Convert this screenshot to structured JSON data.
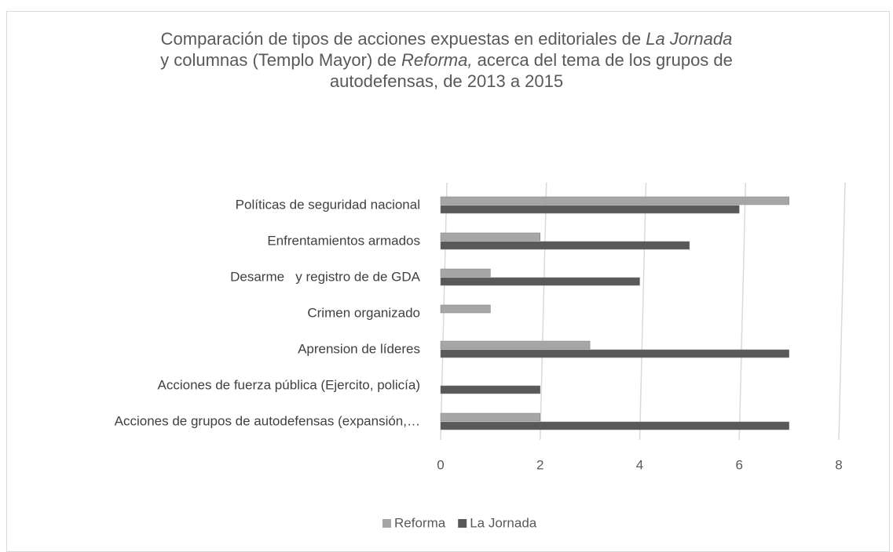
{
  "chart_data": {
    "type": "barh",
    "title": [
      "Comparación de tipos de acciones expuestas en editoriales de ",
      "La Jornada",
      "y columnas (Templo Mayor) de ",
      "Reforma,",
      " acerca del tema de los grupos de",
      "autodefensas, de 2013 a 2015"
    ],
    "categories": [
      "Políticas de seguridad nacional",
      "Enfrentamientos armados",
      "Desarme   y registro de de GDA",
      "Crimen organizado",
      "Aprension de líderes",
      "Acciones de fuerza pública (Ejercito, policía)",
      "Acciones de grupos de autodefensas (expansión,…"
    ],
    "series": [
      {
        "name": "Reforma",
        "color": "#a6a6a6",
        "values": [
          7,
          2,
          1,
          1,
          3,
          0,
          2
        ]
      },
      {
        "name": "La Jornada",
        "color": "#595959",
        "values": [
          6,
          5,
          4,
          0,
          7,
          2,
          7
        ]
      }
    ],
    "xlim": [
      0,
      8
    ],
    "xticks": [
      0,
      2,
      4,
      6,
      8
    ],
    "grid": true,
    "legend": "bottom"
  }
}
